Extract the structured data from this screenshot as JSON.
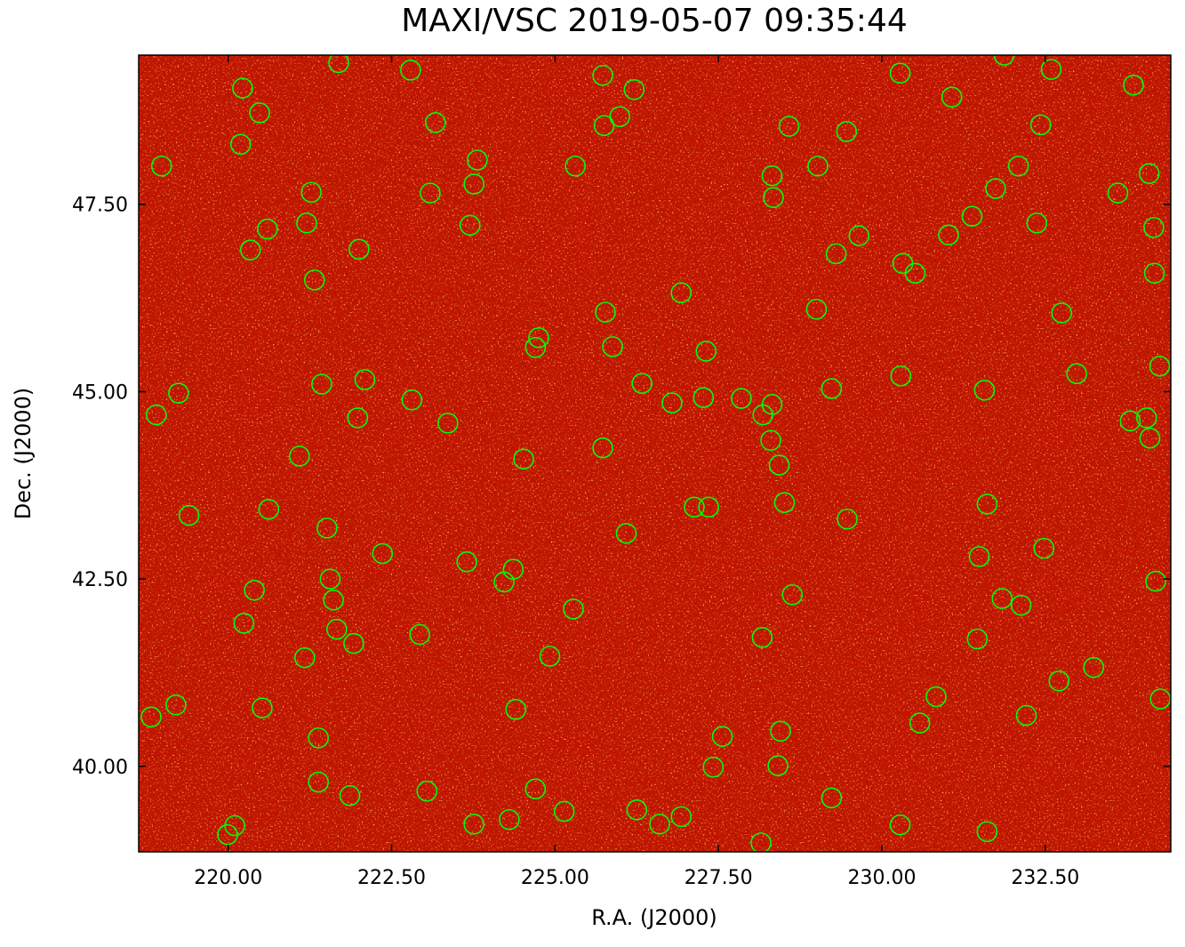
{
  "chart_data": {
    "type": "scatter",
    "title": "MAXI/VSC 2019-05-07 09:35:44",
    "x_label": "R.A. (J2000)",
    "y_label": "Dec. (J2000)",
    "color": "#00ff00",
    "x": [
      218.98,
      220.22,
      220.48,
      220.19,
      221.69,
      222.79,
      223.17,
      220.34,
      220.6,
      221.27,
      221.2,
      221.32,
      222.0,
      223.09,
      223.81,
      223.76,
      223.7,
      225.73,
      226.21,
      225.99,
      225.75,
      225.31,
      228.58,
      228.32,
      228.34,
      229.02,
      229.46,
      230.28,
      231.07,
      231.87,
      232.59,
      233.85,
      232.43,
      232.09,
      231.74,
      231.38,
      231.02,
      232.37,
      233.61,
      234.09,
      234.16,
      234.17,
      229.65,
      229.3,
      230.32,
      230.51,
      226.93,
      229.0,
      232.75,
      225.77,
      224.75,
      224.7,
      225.88,
      227.31,
      226.33,
      226.79,
      227.27,
      227.85,
      228.32,
      228.18,
      228.3,
      228.43,
      229.23,
      230.29,
      231.57,
      232.98,
      234.25,
      233.8,
      234.05,
      234.1,
      219.24,
      218.9,
      221.43,
      222.09,
      221.98,
      222.81,
      223.36,
      221.09,
      224.52,
      225.73,
      219.4,
      220.62,
      221.51,
      222.36,
      223.65,
      224.36,
      224.22,
      226.09,
      227.13,
      227.35,
      228.51,
      229.47,
      231.61,
      231.49,
      232.48,
      234.19,
      231.84,
      232.13,
      228.63,
      225.28,
      221.56,
      221.61,
      220.4,
      220.24,
      221.66,
      221.92,
      221.17,
      222.93,
      224.92,
      228.17,
      231.46,
      233.24,
      232.71,
      218.82,
      219.2,
      220.52,
      224.4,
      230.83,
      234.26,
      232.21,
      230.58,
      221.38,
      227.56,
      228.45,
      227.42,
      228.41,
      221.38,
      221.86,
      223.04,
      224.7,
      225.14,
      226.25,
      226.93,
      226.6,
      224.3,
      223.76,
      229.23,
      230.28,
      231.61,
      228.15,
      220.1,
      219.99
    ],
    "values": [
      48.01,
      49.05,
      48.72,
      48.3,
      49.39,
      49.29,
      48.59,
      46.89,
      47.17,
      47.66,
      47.25,
      46.49,
      46.9,
      47.65,
      48.09,
      47.77,
      47.22,
      49.22,
      49.03,
      48.67,
      48.55,
      48.01,
      48.54,
      47.88,
      47.59,
      48.01,
      48.47,
      49.25,
      48.93,
      49.49,
      49.3,
      49.09,
      48.56,
      48.01,
      47.71,
      47.34,
      47.09,
      47.25,
      47.65,
      47.91,
      47.19,
      46.58,
      47.08,
      46.84,
      46.71,
      46.58,
      46.32,
      46.1,
      46.05,
      46.06,
      45.72,
      45.59,
      45.6,
      45.54,
      45.11,
      44.85,
      44.92,
      44.91,
      44.83,
      44.69,
      44.35,
      44.02,
      45.04,
      45.21,
      45.02,
      45.24,
      45.34,
      44.61,
      44.65,
      44.38,
      44.98,
      44.69,
      45.1,
      45.16,
      44.65,
      44.89,
      44.58,
      44.14,
      44.1,
      44.25,
      43.35,
      43.43,
      43.18,
      42.84,
      42.73,
      42.63,
      42.46,
      43.11,
      43.46,
      43.46,
      43.52,
      43.3,
      43.5,
      42.8,
      42.91,
      42.47,
      42.24,
      42.15,
      42.29,
      42.1,
      42.5,
      42.22,
      42.35,
      41.91,
      41.83,
      41.64,
      41.45,
      41.76,
      41.47,
      41.72,
      41.7,
      41.32,
      41.14,
      40.66,
      40.82,
      40.78,
      40.76,
      40.93,
      40.9,
      40.68,
      40.58,
      40.38,
      40.4,
      40.47,
      39.99,
      40.01,
      39.79,
      39.61,
      39.67,
      39.7,
      39.4,
      39.42,
      39.33,
      39.23,
      39.29,
      39.23,
      39.58,
      39.22,
      39.13,
      38.98,
      39.21,
      39.09
    ],
    "xlim": [
      218.63,
      234.42
    ],
    "ylim": [
      38.86,
      49.49
    ],
    "xticks": [
      {
        "value": 220,
        "label": "220.00"
      },
      {
        "value": 222.5,
        "label": "222.50"
      },
      {
        "value": 225,
        "label": "225.00"
      },
      {
        "value": 227.5,
        "label": "227.50"
      },
      {
        "value": 230,
        "label": "230.00"
      },
      {
        "value": 232.5,
        "label": "232.50"
      }
    ],
    "yticks": [
      {
        "value": 40,
        "label": "40.00"
      },
      {
        "value": 42.5,
        "label": "42.50"
      },
      {
        "value": 45,
        "label": "45.00"
      },
      {
        "value": 47.5,
        "label": "47.50"
      }
    ]
  }
}
